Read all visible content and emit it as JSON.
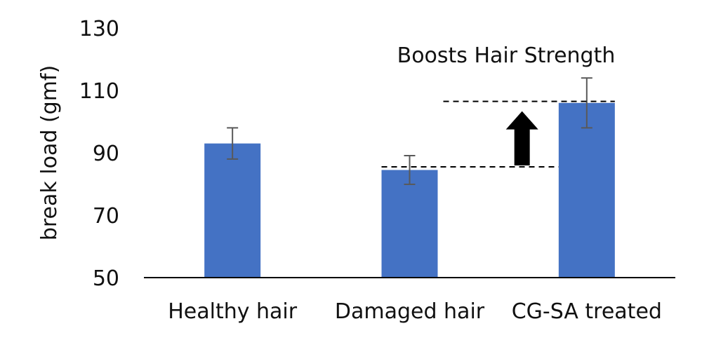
{
  "chart_data": {
    "type": "bar",
    "title": "",
    "xlabel": "",
    "ylabel": "break load (gmf)",
    "ylim": [
      50,
      130
    ],
    "yticks": [
      50,
      70,
      90,
      110,
      130
    ],
    "categories": [
      "Healthy hair",
      "Damaged hair",
      "CG-SA treated"
    ],
    "values": [
      93,
      84.5,
      106
    ],
    "error": [
      5,
      4.6,
      8
    ],
    "grid": false,
    "colors": {
      "bar": "#4472C4",
      "error_bar": "#595959",
      "axis": "#000000",
      "arrow": "#000000"
    },
    "annotation": {
      "text": "Boosts Hair Strength",
      "from_value": 85.5,
      "to_value": 106.5,
      "from_category": "Damaged hair",
      "to_category": "CG-SA treated",
      "marker": "arrow-up"
    }
  }
}
